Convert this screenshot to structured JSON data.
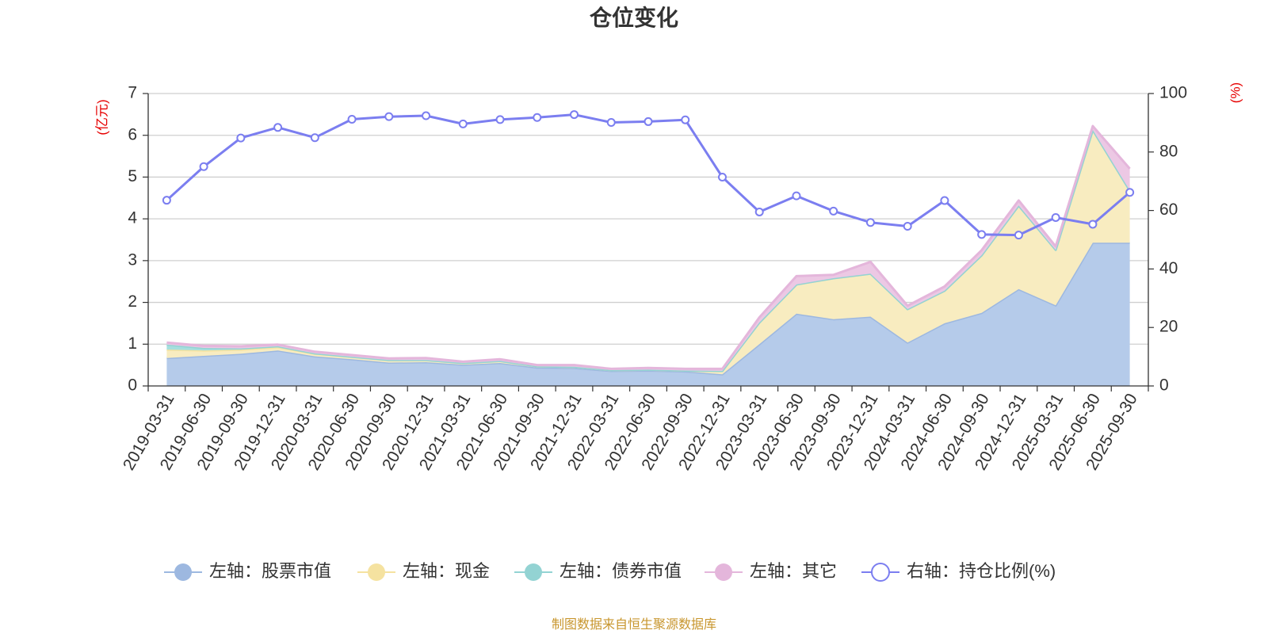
{
  "chart_data": {
    "type": "area",
    "title": "仓位变化",
    "left_axis_unit": "(亿元)",
    "right_axis_unit": "(%)",
    "categories": [
      "2019-03-31",
      "2019-06-30",
      "2019-09-30",
      "2019-12-31",
      "2020-03-31",
      "2020-06-30",
      "2020-09-30",
      "2020-12-31",
      "2021-03-31",
      "2021-06-30",
      "2021-09-30",
      "2021-12-31",
      "2022-03-31",
      "2022-06-30",
      "2022-09-30",
      "2022-12-31",
      "2023-03-31",
      "2023-06-30",
      "2023-09-30",
      "2023-12-31",
      "2024-03-31",
      "2024-06-30",
      "2024-09-30",
      "2024-12-31",
      "2025-03-31",
      "2025-06-30",
      "2025-09-30"
    ],
    "left_ylim": [
      0,
      7
    ],
    "left_yticks": [
      0,
      1,
      2,
      3,
      4,
      5,
      6,
      7
    ],
    "right_ylim": [
      0,
      100
    ],
    "right_yticks": [
      0,
      20,
      40,
      60,
      80,
      100
    ],
    "grid": true,
    "legend_position": "bottom",
    "series": [
      {
        "name": "左轴：股票市值",
        "axis": "left",
        "kind": "stacked-area",
        "color": "#9db8e0",
        "fill": "#b5cbea",
        "values": [
          0.67,
          0.72,
          0.77,
          0.85,
          0.71,
          0.64,
          0.56,
          0.57,
          0.51,
          0.55,
          0.44,
          0.43,
          0.36,
          0.37,
          0.35,
          0.28,
          1.0,
          1.73,
          1.6,
          1.66,
          1.04,
          1.5,
          1.75,
          2.32,
          1.93,
          3.43,
          3.43
        ]
      },
      {
        "name": "左轴：现金",
        "axis": "left",
        "kind": "stacked-area",
        "color": "#f5e2a0",
        "fill": "#f8ecc0",
        "values": [
          0.2,
          0.13,
          0.1,
          0.08,
          0.06,
          0.06,
          0.06,
          0.05,
          0.04,
          0.05,
          0.03,
          0.03,
          0.02,
          0.02,
          0.02,
          0.08,
          0.52,
          0.7,
          0.98,
          1.03,
          0.8,
          0.78,
          1.38,
          2.0,
          1.33,
          2.7,
          1.25
        ]
      },
      {
        "name": "左轴：债券市值",
        "axis": "left",
        "kind": "stacked-area",
        "color": "#93d3d3",
        "fill": "#a6dede",
        "values": [
          0.12,
          0.06,
          0.03,
          0.02,
          0.01,
          0.0,
          0.0,
          0.0,
          0.0,
          0.0,
          0.0,
          0.0,
          0.0,
          0.0,
          0.0,
          0.0,
          0.0,
          0.0,
          0.0,
          0.0,
          0.0,
          0.0,
          0.0,
          0.0,
          0.0,
          0.0,
          0.0
        ]
      },
      {
        "name": "左轴：其它",
        "axis": "left",
        "kind": "stacked-area",
        "color": "#e4b6db",
        "fill": "#ecc8e4",
        "values": [
          0.05,
          0.05,
          0.05,
          0.04,
          0.04,
          0.04,
          0.04,
          0.05,
          0.03,
          0.04,
          0.03,
          0.04,
          0.03,
          0.04,
          0.04,
          0.05,
          0.12,
          0.2,
          0.08,
          0.28,
          0.08,
          0.1,
          0.12,
          0.12,
          0.08,
          0.09,
          0.52
        ]
      },
      {
        "name": "右轴：持仓比例(%)",
        "axis": "right",
        "kind": "line",
        "color": "#7b7ef0",
        "values": [
          63.5,
          75,
          84.8,
          88.4,
          84.9,
          91.2,
          92.1,
          92.4,
          89.6,
          91.1,
          91.8,
          92.8,
          90.1,
          90.4,
          91,
          71.4,
          59.5,
          65,
          59.8,
          55.9,
          54.6,
          63.4,
          51.8,
          51.6,
          57.6,
          55.3,
          66.2
        ]
      }
    ]
  },
  "footer": {
    "source": "制图数据来自恒生聚源数据库"
  }
}
